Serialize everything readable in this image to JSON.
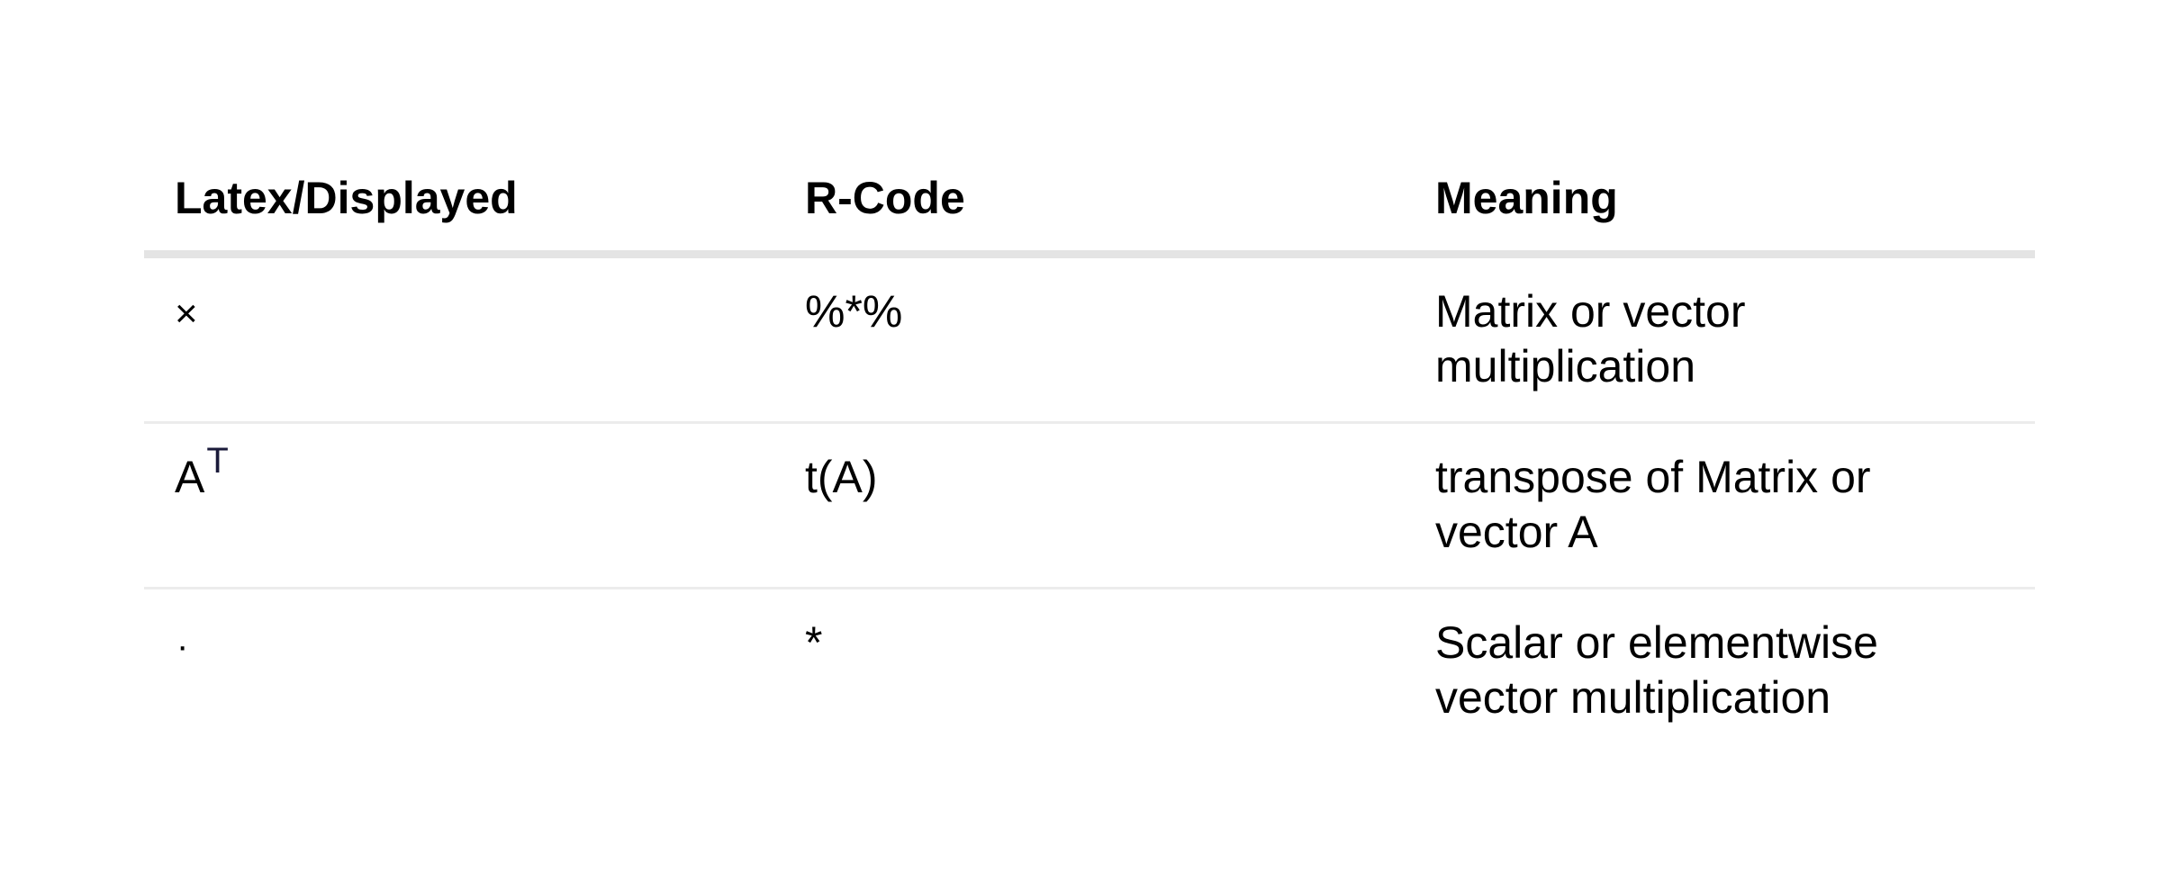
{
  "table": {
    "headers": [
      "Latex/Displayed",
      "R-Code",
      "Meaning"
    ],
    "rows": [
      {
        "displayed": "×",
        "displayed_sup": "",
        "rcode": "%*%",
        "meaning": "Matrix or vector multiplication"
      },
      {
        "displayed": "A",
        "displayed_sup": "T",
        "rcode": "t(A)",
        "meaning": "transpose of Matrix or vector A"
      },
      {
        "displayed": "·",
        "displayed_sup": "",
        "rcode": "*",
        "meaning": "Scalar or elementwise vector multiplication"
      }
    ]
  }
}
